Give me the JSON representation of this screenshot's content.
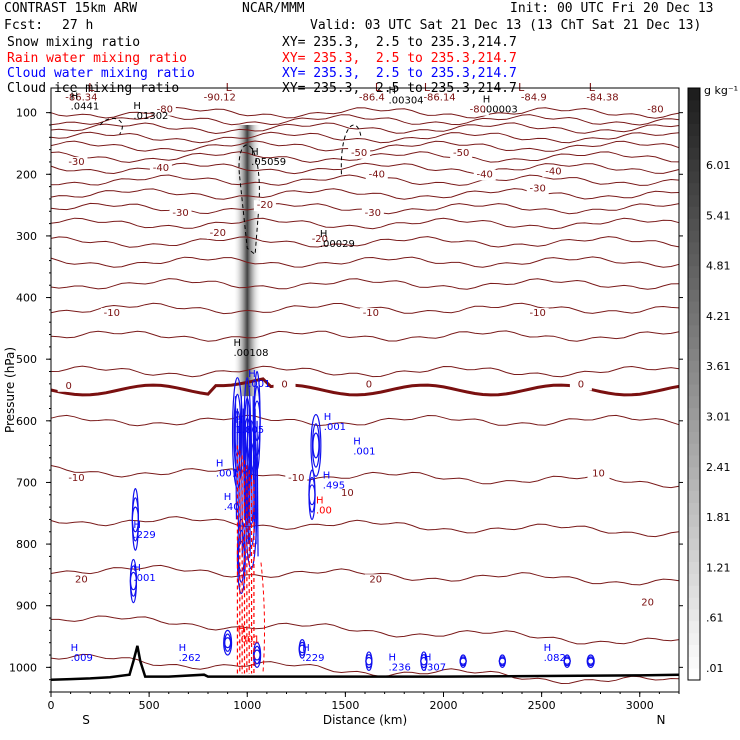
{
  "header": {
    "model": "CONTRAST 15km ARW",
    "org": "NCAR/MMM",
    "init": "Init: 00 UTC Fri 20 Dec 13",
    "fcst_label": "Fcst:",
    "fcst_value": "27 h",
    "valid": "Valid: 03 UTC Sat 21 Dec 13 (13 ChT Sat 21 Dec 13)"
  },
  "fields": [
    {
      "name": "Snow mixing ratio",
      "color": "#000000",
      "xy": "XY= 235.3,  2.5 to 235.3,214.7"
    },
    {
      "name": "Rain water mixing ratio",
      "color": "#ff0000",
      "xy": "XY= 235.3,  2.5 to 235.3,214.7"
    },
    {
      "name": "Cloud water mixing ratio",
      "color": "#0000ff",
      "xy": "XY= 235.3,  2.5 to 235.3,214.7"
    },
    {
      "name": "Cloud ice mixing ratio",
      "color": "#000000",
      "xy": "XY= 235.3,  2.5 to 235.3,214.7"
    }
  ],
  "chart_data": {
    "type": "heatmap",
    "xlabel": "Distance (km)",
    "ylabel": "Pressure (hPa)",
    "xlim": [
      0,
      3200
    ],
    "ylim": [
      1040,
      60
    ],
    "xticks": [
      0,
      500,
      1000,
      1500,
      2000,
      2500,
      3000
    ],
    "yticks": [
      100,
      200,
      300,
      400,
      500,
      600,
      700,
      800,
      900,
      1000
    ],
    "x_end_labels": {
      "left": "S",
      "right": "N"
    },
    "colorbar": {
      "unit": "g kg⁻¹",
      "labels": [
        ".01",
        ".61",
        "1.21",
        "1.81",
        "2.41",
        "3.01",
        "3.61",
        "4.21",
        "4.81",
        "5.41",
        "6.01"
      ]
    },
    "shading": {
      "field": "Snow mixing ratio",
      "x_center": 1000,
      "p_top": 120,
      "p_bottom": 560
    },
    "terrain": [
      [
        0,
        1020
      ],
      [
        100,
        1019
      ],
      [
        200,
        1018
      ],
      [
        300,
        1016
      ],
      [
        400,
        1012
      ],
      [
        420,
        990
      ],
      [
        440,
        965
      ],
      [
        455,
        990
      ],
      [
        480,
        1015
      ],
      [
        600,
        1015
      ],
      [
        780,
        1012
      ],
      [
        800,
        1015
      ],
      [
        1000,
        1015
      ],
      [
        1500,
        1015
      ],
      [
        2000,
        1015
      ],
      [
        2500,
        1014
      ],
      [
        3000,
        1013
      ],
      [
        3200,
        1012
      ]
    ],
    "temperature_labels": [
      {
        "x": 130,
        "p": 185,
        "text": "-30"
      },
      {
        "x": 580,
        "p": 100,
        "text": "-80"
      },
      {
        "x": 1090,
        "p": 255,
        "text": "-20"
      },
      {
        "x": 1570,
        "p": 170,
        "text": "-50"
      },
      {
        "x": 2090,
        "p": 170,
        "text": "-50"
      },
      {
        "x": 560,
        "p": 195,
        "text": "-40"
      },
      {
        "x": 1660,
        "p": 205,
        "text": "-40"
      },
      {
        "x": 2210,
        "p": 205,
        "text": "-40"
      },
      {
        "x": 2560,
        "p": 200,
        "text": "-40"
      },
      {
        "x": 660,
        "p": 268,
        "text": "-30"
      },
      {
        "x": 1640,
        "p": 268,
        "text": "-30"
      },
      {
        "x": 2480,
        "p": 228,
        "text": "-30"
      },
      {
        "x": 850,
        "p": 300,
        "text": "-20"
      },
      {
        "x": 1370,
        "p": 310,
        "text": "-20"
      },
      {
        "x": 310,
        "p": 430,
        "text": "-10"
      },
      {
        "x": 1630,
        "p": 430,
        "text": "-10"
      },
      {
        "x": 2480,
        "p": 430,
        "text": "-10"
      },
      {
        "x": 90,
        "p": 548,
        "text": "0"
      },
      {
        "x": 1190,
        "p": 546,
        "text": "0"
      },
      {
        "x": 1620,
        "p": 546,
        "text": "0"
      },
      {
        "x": 2700,
        "p": 546,
        "text": "0"
      },
      {
        "x": 130,
        "p": 698,
        "text": "-10"
      },
      {
        "x": 1250,
        "p": 698,
        "text": "-10"
      },
      {
        "x": 1510,
        "p": 722,
        "text": "10"
      },
      {
        "x": 2790,
        "p": 690,
        "text": "10"
      },
      {
        "x": 155,
        "p": 862,
        "text": "20"
      },
      {
        "x": 1655,
        "p": 862,
        "text": "20"
      },
      {
        "x": 3040,
        "p": 900,
        "text": "20"
      },
      {
        "x": 155,
        "p": 80,
        "text": "-86.34"
      },
      {
        "x": 860,
        "p": 80,
        "text": "-90.12"
      },
      {
        "x": 1635,
        "p": 80,
        "text": "-86.4"
      },
      {
        "x": 1980,
        "p": 80,
        "text": "-86.14"
      },
      {
        "x": 2460,
        "p": 80,
        "text": "-84.9"
      },
      {
        "x": 2810,
        "p": 80,
        "text": "-84.38"
      },
      {
        "x": 2175,
        "p": 100,
        "text": "-80"
      },
      {
        "x": 3080,
        "p": 100,
        "text": "-80"
      }
    ],
    "labels_L": [
      {
        "x": 190,
        "p": 65
      },
      {
        "x": 890,
        "p": 65
      },
      {
        "x": 1650,
        "p": 65
      },
      {
        "x": 1900,
        "p": 65
      },
      {
        "x": 2380,
        "p": 65
      },
      {
        "x": 2740,
        "p": 65
      }
    ],
    "maxima": [
      {
        "x": 100,
        "p": 95,
        "value": ".0441",
        "color": "#000000"
      },
      {
        "x": 420,
        "p": 110,
        "value": ".01302",
        "color": "#000000"
      },
      {
        "x": 1020,
        "p": 185,
        "value": ".05059",
        "color": "#000000"
      },
      {
        "x": 1720,
        "p": 85,
        "value": ".00304",
        "color": "#000000"
      },
      {
        "x": 2200,
        "p": 100,
        "value": ".00003",
        "color": "#000000"
      },
      {
        "x": 1370,
        "p": 318,
        "value": ".00029",
        "color": "#000000"
      },
      {
        "x": 930,
        "p": 495,
        "value": ".00108",
        "color": "#000000"
      },
      {
        "x": 1005,
        "p": 545,
        "value": ".001",
        "color": "#0000ff"
      },
      {
        "x": 940,
        "p": 620,
        "value": "1.005",
        "color": "#0000ff"
      },
      {
        "x": 1390,
        "p": 615,
        "value": ".001",
        "color": "#0000ff"
      },
      {
        "x": 1540,
        "p": 655,
        "value": ".001",
        "color": "#0000ff"
      },
      {
        "x": 840,
        "p": 690,
        "value": ".001",
        "color": "#0000ff"
      },
      {
        "x": 880,
        "p": 745,
        "value": ".40",
        "color": "#0000ff"
      },
      {
        "x": 1385,
        "p": 710,
        "value": ".495",
        "color": "#0000ff"
      },
      {
        "x": 1350,
        "p": 750,
        "value": ".00",
        "color": "#ff0000"
      },
      {
        "x": 420,
        "p": 790,
        "value": ".229",
        "color": "#0000ff"
      },
      {
        "x": 420,
        "p": 860,
        "value": ".001",
        "color": "#0000ff"
      },
      {
        "x": 950,
        "p": 960,
        "value": ".001",
        "color": "#ff0000"
      },
      {
        "x": 100,
        "p": 990,
        "value": ".009",
        "color": "#0000ff"
      },
      {
        "x": 650,
        "p": 990,
        "value": ".262",
        "color": "#0000ff"
      },
      {
        "x": 1280,
        "p": 990,
        "value": ".229",
        "color": "#0000ff"
      },
      {
        "x": 1720,
        "p": 1005,
        "value": ".236",
        "color": "#0000ff"
      },
      {
        "x": 1900,
        "p": 1005,
        "value": ".307",
        "color": "#0000ff"
      },
      {
        "x": 2510,
        "p": 990,
        "value": ".082",
        "color": "#0000ff"
      }
    ]
  }
}
